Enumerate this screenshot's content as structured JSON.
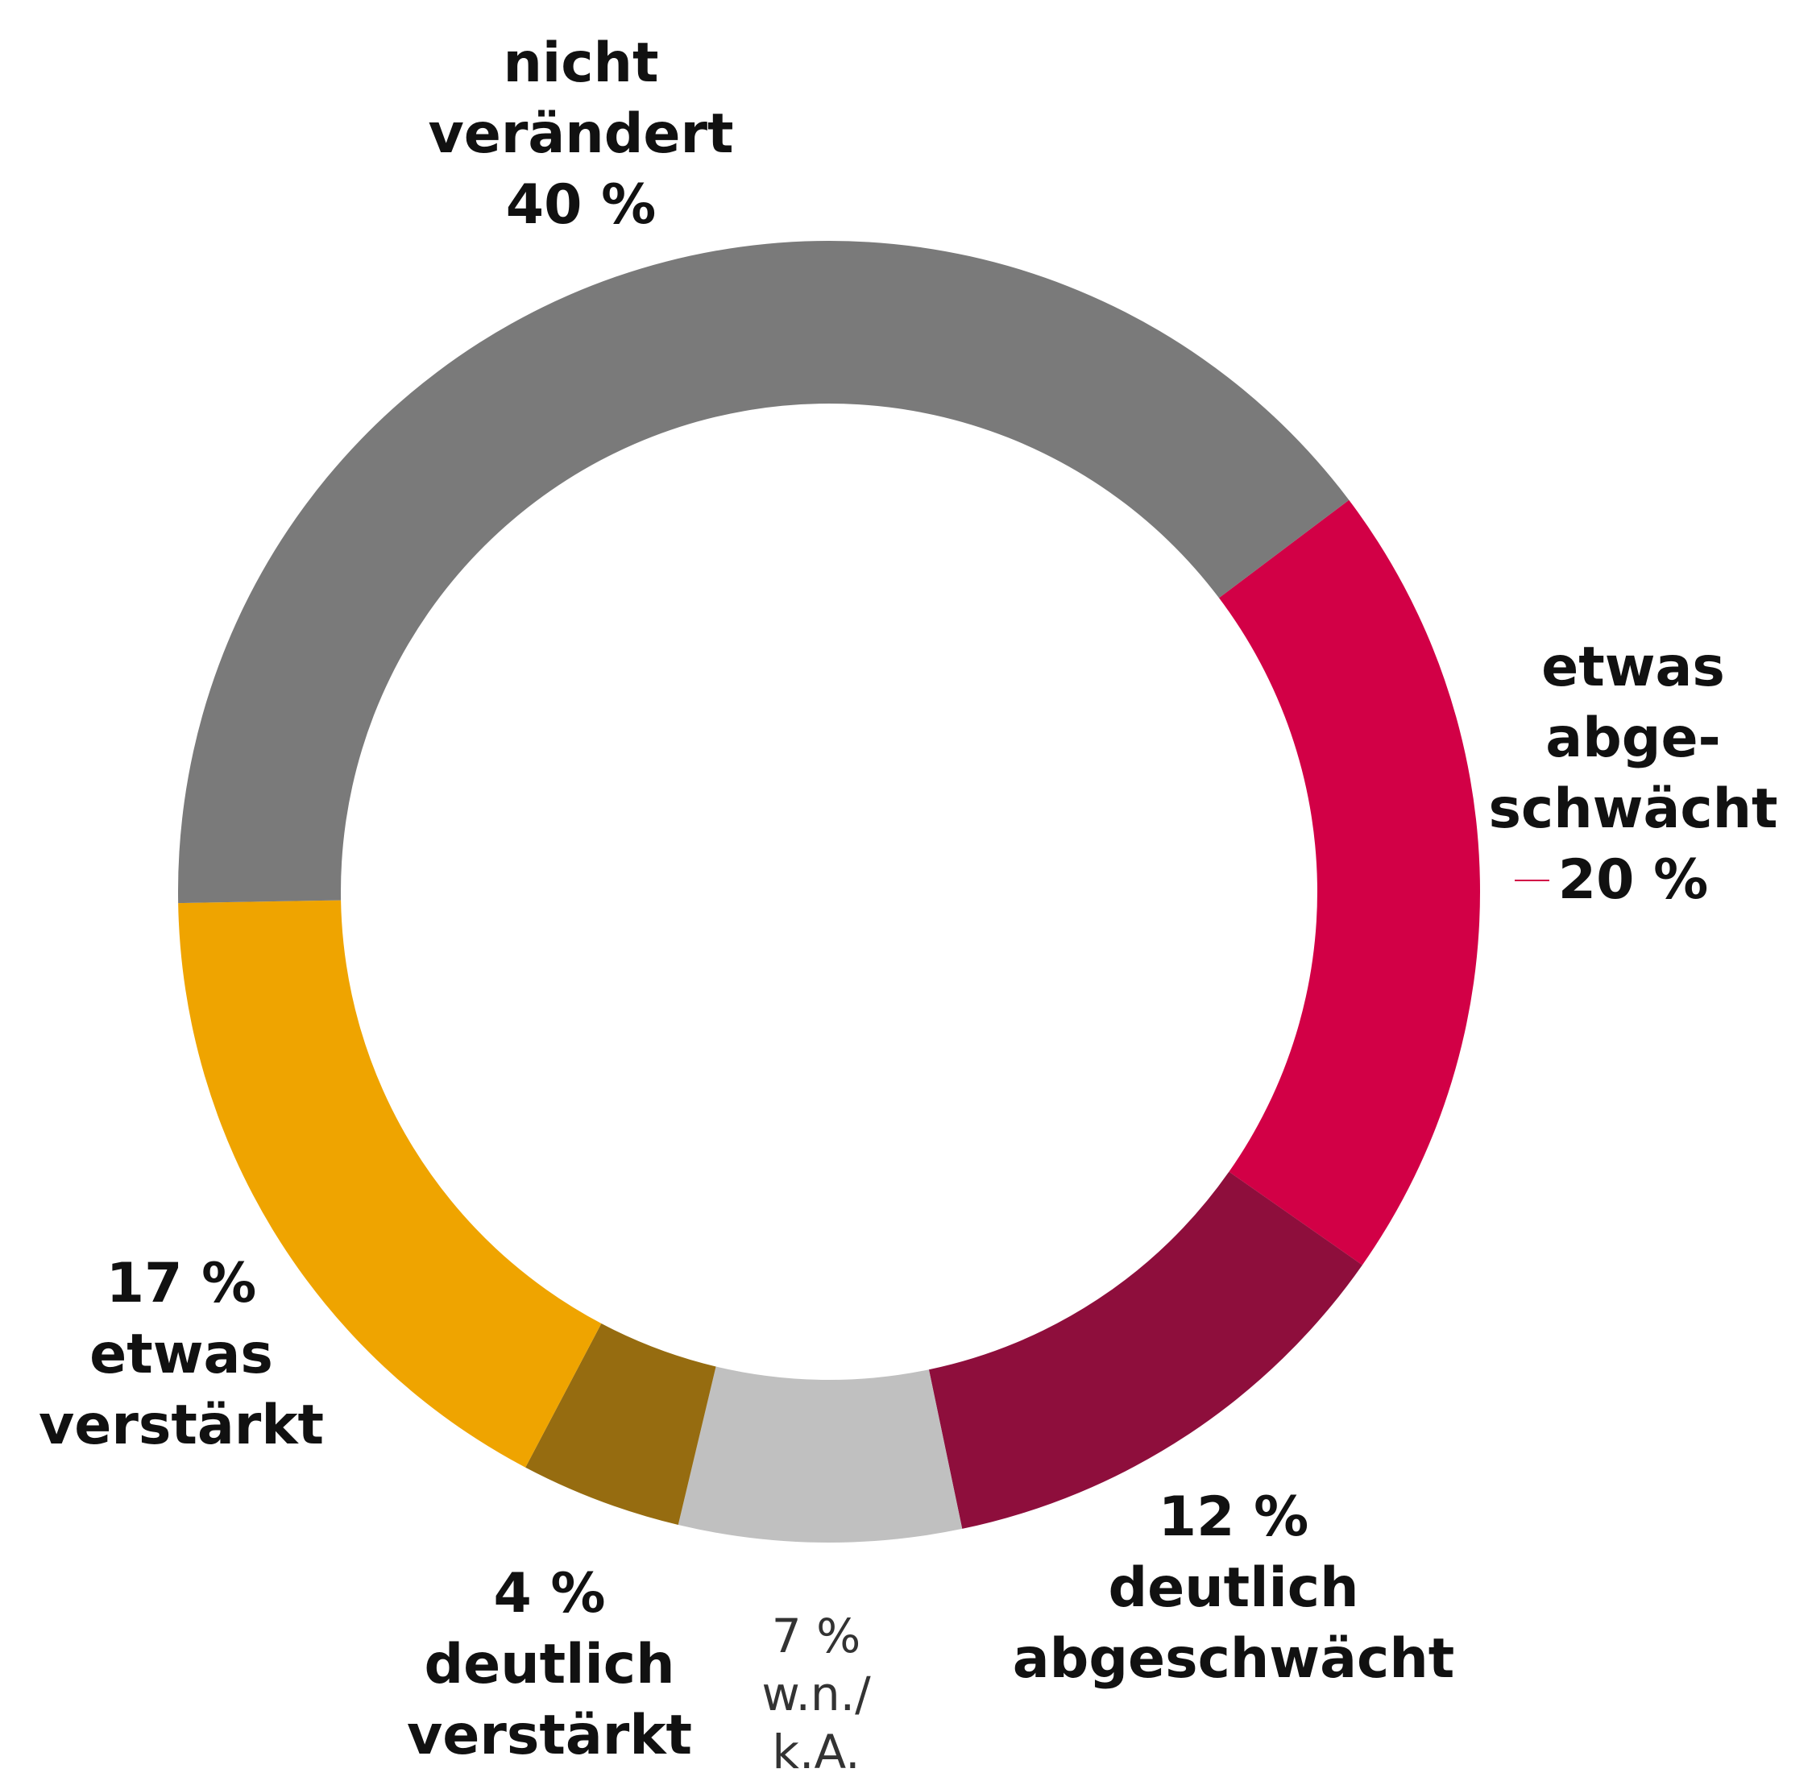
{
  "chart_data": {
    "type": "donut",
    "categories": [
      "etwas\nabge-\nschwächt",
      "deutlich\nabgeschwächt",
      "w.n./\nk.A.",
      "deutlich\nverstärkt",
      "etwas\nverstärkt",
      "nicht\nverändert"
    ],
    "values": [
      20,
      12,
      7,
      4,
      17,
      40
    ],
    "value_labels": [
      "20 %",
      "12 %",
      "7 %",
      "4 %",
      "17 %",
      "40 %"
    ],
    "colors": [
      "#d20046",
      "#8e0e3c",
      "#c0c0c0",
      "#966c10",
      "#efa400",
      "#7a7a7a"
    ]
  }
}
